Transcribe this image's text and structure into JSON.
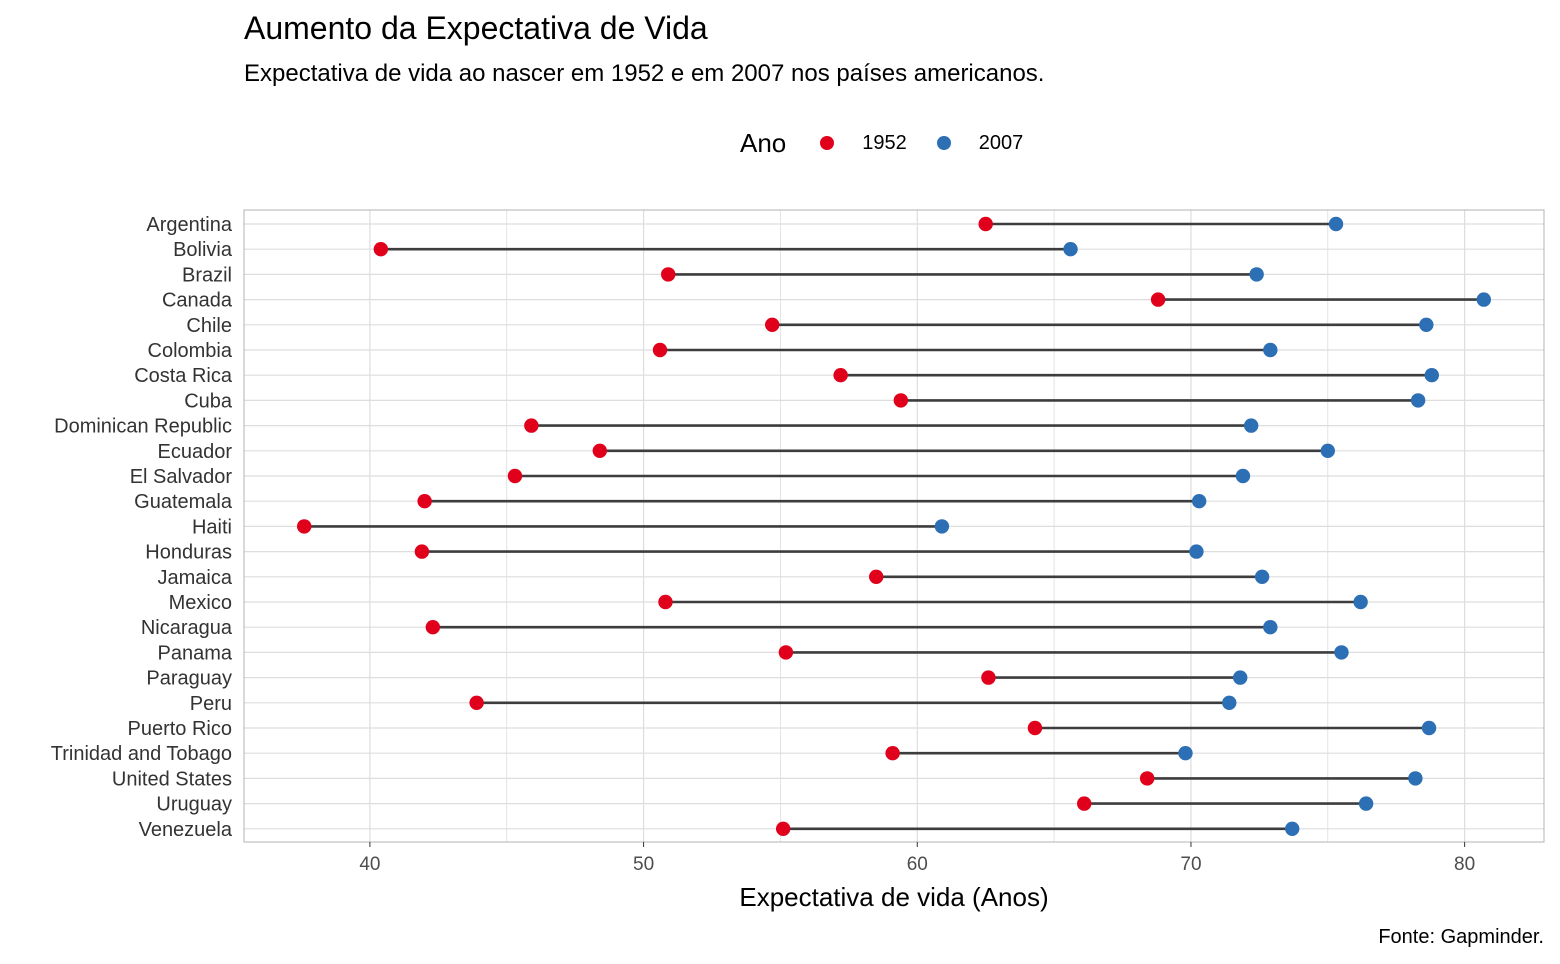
{
  "chart_data": {
    "type": "dumbbell",
    "title": "Aumento da Expectativa de Vida",
    "subtitle": "Expectativa de vida ao nascer em 1952 e em 2007 nos países americanos.",
    "caption": "Fonte: Gapminder.",
    "xlabel": "Expectativa de vida (Anos)",
    "ylabel": "",
    "xlim": [
      35.4,
      82.9
    ],
    "xticks": [
      "40",
      "50",
      "60",
      "70",
      "80"
    ],
    "grid": true,
    "legend": {
      "title": "Ano",
      "position": "top",
      "entries": [
        {
          "label": "1952",
          "color": "#e0001b"
        },
        {
          "label": "2007",
          "color": "#2d6fb4"
        }
      ]
    },
    "categories": [
      "Argentina",
      "Bolivia",
      "Brazil",
      "Canada",
      "Chile",
      "Colombia",
      "Costa Rica",
      "Cuba",
      "Dominican Republic",
      "Ecuador",
      "El Salvador",
      "Guatemala",
      "Haiti",
      "Honduras",
      "Jamaica",
      "Mexico",
      "Nicaragua",
      "Panama",
      "Paraguay",
      "Peru",
      "Puerto Rico",
      "Trinidad and Tobago",
      "United States",
      "Uruguay",
      "Venezuela"
    ],
    "series": [
      {
        "name": "1952",
        "color": "#e0001b",
        "values": [
          62.5,
          40.4,
          50.9,
          68.8,
          54.7,
          50.6,
          57.2,
          59.4,
          45.9,
          48.4,
          45.3,
          42.0,
          37.6,
          41.9,
          58.5,
          50.8,
          42.3,
          55.2,
          62.6,
          43.9,
          64.3,
          59.1,
          68.4,
          66.1,
          55.1
        ]
      },
      {
        "name": "2007",
        "color": "#2d6fb4",
        "values": [
          75.3,
          65.6,
          72.4,
          80.7,
          78.6,
          72.9,
          78.8,
          78.3,
          72.2,
          75.0,
          71.9,
          70.3,
          60.9,
          70.2,
          72.6,
          76.2,
          72.9,
          75.5,
          71.8,
          71.4,
          78.7,
          69.8,
          78.2,
          76.4,
          73.7
        ]
      }
    ],
    "colors": {
      "segment": "#3d3d3d",
      "grid": "#dddddd",
      "panel_border": "#b3b3b3"
    }
  }
}
